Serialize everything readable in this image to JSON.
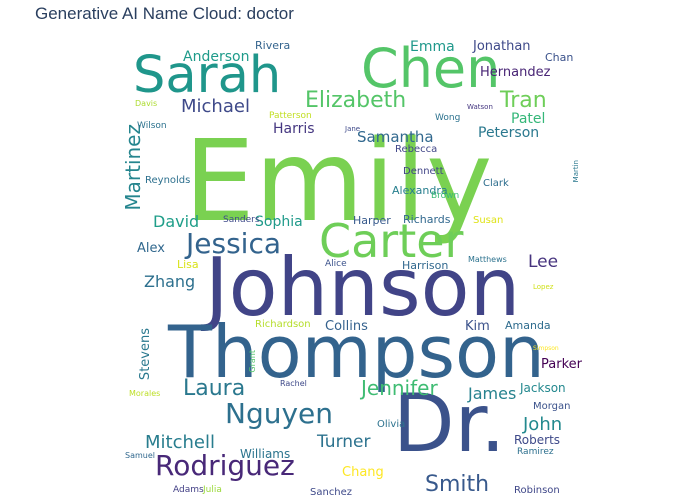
{
  "title": "Generative AI Name Cloud: doctor",
  "colors": {
    "title": "#2a3f5f",
    "background": "#ffffff"
  },
  "words": [
    {
      "text": "Emily",
      "color": "#7ad151"
    },
    {
      "text": "Johnson",
      "color": "#414487"
    },
    {
      "text": "Thompson",
      "color": "#33638d"
    },
    {
      "text": "Dr.",
      "color": "#3b528b"
    },
    {
      "text": "Sarah",
      "color": "#1f968b"
    },
    {
      "text": "Chen",
      "color": "#54c568"
    },
    {
      "text": "Carter",
      "color": "#6ece58"
    },
    {
      "text": "Jessica",
      "color": "#33638d"
    },
    {
      "text": "Rodriguez",
      "color": "#482878"
    },
    {
      "text": "Nguyen",
      "color": "#2d708e"
    },
    {
      "text": "Elizabeth",
      "color": "#54c568"
    },
    {
      "text": "Tran",
      "color": "#6ece58"
    },
    {
      "text": "Smith",
      "color": "#38598c"
    },
    {
      "text": "Laura",
      "color": "#2a788e"
    },
    {
      "text": "Jennifer",
      "color": "#3fbc73"
    },
    {
      "text": "Martinez",
      "color": "#25858e"
    },
    {
      "text": "Michael",
      "color": "#3e4989"
    },
    {
      "text": "Mitchell",
      "color": "#287d8e"
    },
    {
      "text": "John",
      "color": "#23898e"
    },
    {
      "text": "Turner",
      "color": "#2c728e"
    },
    {
      "text": "Zhang",
      "color": "#2d708e"
    },
    {
      "text": "David",
      "color": "#1f9e89"
    },
    {
      "text": "Anderson",
      "color": "#1e9b8a"
    },
    {
      "text": "James",
      "color": "#26828e"
    },
    {
      "text": "Emma",
      "color": "#1f988b"
    },
    {
      "text": "Jonathan",
      "color": "#3e4989"
    },
    {
      "text": "Hernandez",
      "color": "#482475"
    },
    {
      "text": "Samantha",
      "color": "#31688e"
    },
    {
      "text": "Harris",
      "color": "#453781"
    },
    {
      "text": "Peterson",
      "color": "#2a788e"
    },
    {
      "text": "Patel",
      "color": "#35b779"
    },
    {
      "text": "Lee",
      "color": "#46337e"
    },
    {
      "text": "Sophia",
      "color": "#1f9a8a"
    },
    {
      "text": "Alex",
      "color": "#31688e"
    },
    {
      "text": "Collins",
      "color": "#34618d"
    },
    {
      "text": "Kim",
      "color": "#3b528b"
    },
    {
      "text": "Jackson",
      "color": "#23888e"
    },
    {
      "text": "Parker",
      "color": "#440154"
    },
    {
      "text": "Roberts",
      "color": "#3e4989"
    },
    {
      "text": "Williams",
      "color": "#2b748e"
    },
    {
      "text": "Chang",
      "color": "#fde725"
    },
    {
      "text": "Stevens",
      "color": "#2a788e"
    },
    {
      "text": "Rivera",
      "color": "#33638d"
    },
    {
      "text": "Chan",
      "color": "#3b528b"
    },
    {
      "text": "Richards",
      "color": "#31688e"
    },
    {
      "text": "Harrison",
      "color": "#31688e"
    },
    {
      "text": "Alexandra",
      "color": "#277f8e"
    },
    {
      "text": "Reynolds",
      "color": "#2d708e"
    },
    {
      "text": "Lisa",
      "color": "#d8e219"
    },
    {
      "text": "Harper",
      "color": "#375a8c"
    },
    {
      "text": "Sanders",
      "color": "#3e4a89"
    },
    {
      "text": "Richardson",
      "color": "#b5de2b"
    },
    {
      "text": "Amanda",
      "color": "#2f6c8e"
    },
    {
      "text": "Morgan",
      "color": "#3b528b"
    },
    {
      "text": "Olivia",
      "color": "#2c728e"
    },
    {
      "text": "Robinson",
      "color": "#3f4788"
    },
    {
      "text": "Sanchez",
      "color": "#3e4989"
    },
    {
      "text": "Adams",
      "color": "#423f85"
    },
    {
      "text": "Julia",
      "color": "#9bd93c"
    },
    {
      "text": "Ramirez",
      "color": "#2d708e"
    },
    {
      "text": "Rebecca",
      "color": "#404688"
    },
    {
      "text": "Dennett",
      "color": "#414487"
    },
    {
      "text": "Clark",
      "color": "#2e6e8e"
    },
    {
      "text": "Susan",
      "color": "#dfe318"
    },
    {
      "text": "Brown",
      "color": "#3aba76"
    },
    {
      "text": "Alice",
      "color": "#3b528b"
    },
    {
      "text": "Wong",
      "color": "#2c728e"
    },
    {
      "text": "Patterson",
      "color": "#c2df23"
    },
    {
      "text": "Watson",
      "color": "#453781"
    },
    {
      "text": "Wilson",
      "color": "#2c728e"
    },
    {
      "text": "Davis",
      "color": "#addc30"
    },
    {
      "text": "Morales",
      "color": "#bddf26"
    },
    {
      "text": "Samuel",
      "color": "#31688e"
    },
    {
      "text": "Grant",
      "color": "#52c569"
    },
    {
      "text": "Rachel",
      "color": "#3e4989"
    },
    {
      "text": "Jane",
      "color": "#3e4989"
    },
    {
      "text": "Matthews",
      "color": "#2c728e"
    },
    {
      "text": "Martin",
      "color": "#2a788e"
    },
    {
      "text": "Simpson",
      "color": "#fde725"
    },
    {
      "text": "Lopez",
      "color": "#d0e11c"
    }
  ]
}
